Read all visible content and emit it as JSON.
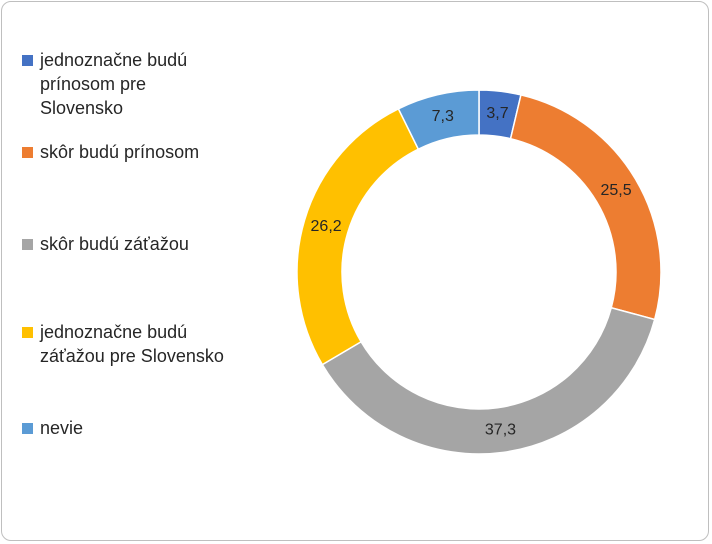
{
  "chart_data": {
    "type": "pie",
    "variant": "donut",
    "title": "",
    "legend_position": "left",
    "slices": [
      {
        "label": "jednoznačne budú prínosom pre Slovensko",
        "legend_display": "jednoznačne budú\nprínosom pre\nSlovensko",
        "value": 3.7,
        "value_label": "3,7",
        "color": "#4472c4"
      },
      {
        "label": "skôr budú prínosom",
        "legend_display": "skôr budú prínosom",
        "value": 25.5,
        "value_label": "25,5",
        "color": "#ed7d31"
      },
      {
        "label": "skôr budú záťažou",
        "legend_display": "skôr budú záťažou",
        "value": 37.3,
        "value_label": "37,3",
        "color": "#a5a5a5"
      },
      {
        "label": "jednoznačne budú záťažou pre Slovensko",
        "legend_display": "jednoznačne budú\nzáťažou pre Slovensko",
        "value": 26.2,
        "value_label": "26,2",
        "color": "#ffc000"
      },
      {
        "label": "nevie",
        "legend_display": "nevie",
        "value": 7.3,
        "value_label": "7,3",
        "color": "#5b9bd5"
      }
    ]
  }
}
